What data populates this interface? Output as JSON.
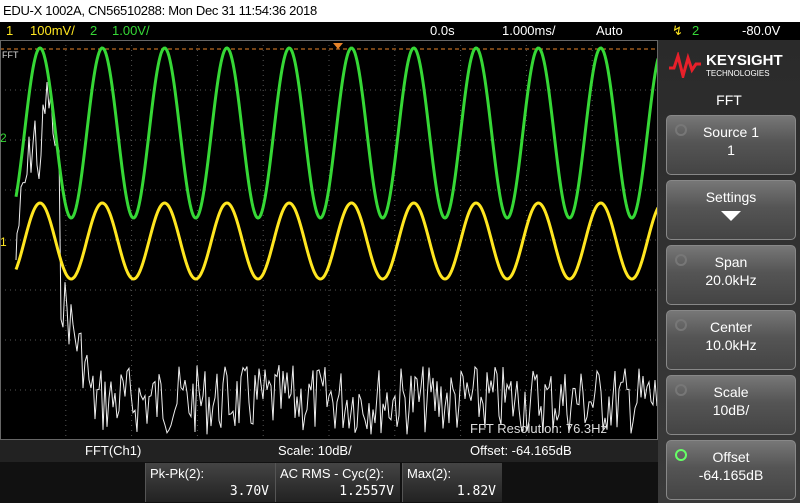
{
  "header": {
    "title": "EDU-X 1002A, CN56510288: Mon Dec 31 11:54:36 2018"
  },
  "status_bar": {
    "ch1_label": "1",
    "ch1_scale": "100mV/",
    "ch2_label": "2",
    "ch2_scale": "1.00V/",
    "time_delay": "0.0s",
    "time_scale": "1.000ms/",
    "trigger_mode": "Auto",
    "trigger_source": "2",
    "trigger_level": "-80.0V"
  },
  "screen": {
    "fft_label": "FFT",
    "ch2_marker": "2",
    "ch1_marker": "1",
    "fft_resolution": "FFT Resolution: 76.3Hz"
  },
  "fft_status": {
    "source": "FFT(Ch1)",
    "scale": "Scale: 10dB/",
    "offset": "Offset: -64.165dB"
  },
  "measurements": [
    {
      "label": "Pk-Pk(2):",
      "value": "3.70V"
    },
    {
      "label": "AC RMS - Cyc(2):",
      "value": "1.2557V"
    },
    {
      "label": "Max(2):",
      "value": "1.82V"
    }
  ],
  "menu": {
    "brand": "KEYSIGHT",
    "brand_sub": "TECHNOLOGIES",
    "title": "FFT",
    "softkeys": [
      {
        "label": "Source 1",
        "value": "1"
      },
      {
        "label": "Settings"
      },
      {
        "label": "Span",
        "value": "20.0kHz"
      },
      {
        "label": "Center",
        "value": "10.0kHz"
      },
      {
        "label": "Scale",
        "value": "10dB/"
      },
      {
        "label": "Offset",
        "value": "-64.165dB"
      }
    ]
  }
}
